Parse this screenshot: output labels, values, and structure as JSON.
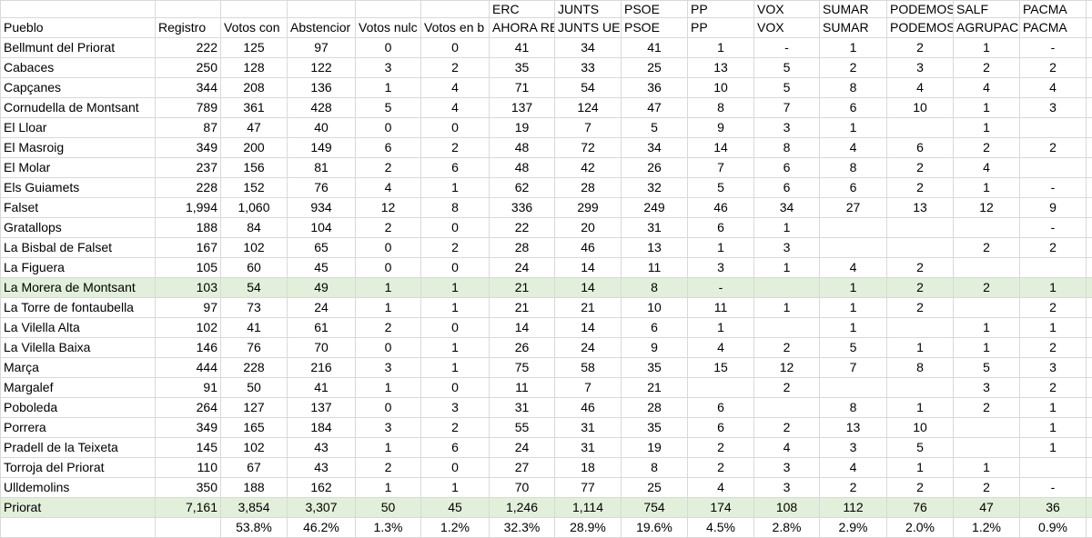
{
  "header": {
    "row1": [
      null,
      null,
      null,
      null,
      null,
      null,
      "ERC",
      "JUNTS",
      "PSOE",
      "PP",
      "VOX",
      "SUMAR",
      "PODEMOS",
      "SALF",
      "PACMA"
    ],
    "row2": [
      "Pueblo",
      "Registro",
      "Votos con",
      "Abstencior",
      "Votos nulc",
      "Votos en b",
      "AHORA RE",
      "JUNTS UE",
      "PSOE",
      "PP",
      "VOX",
      "SUMAR",
      "PODEMOS",
      "AGRUPACI",
      "PACMA"
    ]
  },
  "table": {
    "rows": [
      [
        "Bellmunt del Priorat",
        "222",
        "125",
        "97",
        "0",
        "0",
        "41",
        "34",
        "41",
        "1",
        "-",
        "1",
        "2",
        "1",
        "-"
      ],
      [
        "Cabaces",
        "250",
        "128",
        "122",
        "3",
        "2",
        "35",
        "33",
        "25",
        "13",
        "5",
        "2",
        "3",
        "2",
        "2"
      ],
      [
        "Capçanes",
        "344",
        "208",
        "136",
        "1",
        "4",
        "71",
        "54",
        "36",
        "10",
        "5",
        "8",
        "4",
        "4",
        "4"
      ],
      [
        "Cornudella de Montsant",
        "789",
        "361",
        "428",
        "5",
        "4",
        "137",
        "124",
        "47",
        "8",
        "7",
        "6",
        "10",
        "1",
        "3"
      ],
      [
        "El Lloar",
        "87",
        "47",
        "40",
        "0",
        "0",
        "19",
        "7",
        "5",
        "9",
        "3",
        "1",
        null,
        "1",
        null
      ],
      [
        "El Masroig",
        "349",
        "200",
        "149",
        "6",
        "2",
        "48",
        "72",
        "34",
        "14",
        "8",
        "4",
        "6",
        "2",
        "2"
      ],
      [
        "El Molar",
        "237",
        "156",
        "81",
        "2",
        "6",
        "48",
        "42",
        "26",
        "7",
        "6",
        "8",
        "2",
        "4",
        null
      ],
      [
        "Els Guiamets",
        "228",
        "152",
        "76",
        "4",
        "1",
        "62",
        "28",
        "32",
        "5",
        "6",
        "6",
        "2",
        "1",
        "-"
      ],
      [
        "Falset",
        "1,994",
        "1,060",
        "934",
        "12",
        "8",
        "336",
        "299",
        "249",
        "46",
        "34",
        "27",
        "13",
        "12",
        "9"
      ],
      [
        "Gratallops",
        "188",
        "84",
        "104",
        "2",
        "0",
        "22",
        "20",
        "31",
        "6",
        "1",
        null,
        null,
        null,
        "-"
      ],
      [
        "La Bisbal de Falset",
        "167",
        "102",
        "65",
        "0",
        "2",
        "28",
        "46",
        "13",
        "1",
        "3",
        null,
        null,
        "2",
        "2"
      ],
      [
        "La Figuera",
        "105",
        "60",
        "45",
        "0",
        "0",
        "24",
        "14",
        "11",
        "3",
        "1",
        "4",
        "2",
        null,
        null
      ],
      [
        "La Morera de Montsant",
        "103",
        "54",
        "49",
        "1",
        "1",
        "21",
        "14",
        "8",
        "-",
        null,
        "1",
        "2",
        "2",
        "1"
      ],
      [
        "La Torre de fontaubella",
        "97",
        "73",
        "24",
        "1",
        "1",
        "21",
        "21",
        "10",
        "11",
        "1",
        "1",
        "2",
        null,
        "2"
      ],
      [
        "La Vilella Alta",
        "102",
        "41",
        "61",
        "2",
        "0",
        "14",
        "14",
        "6",
        "1",
        null,
        "1",
        null,
        "1",
        "1"
      ],
      [
        "La Vilella Baixa",
        "146",
        "76",
        "70",
        "0",
        "1",
        "26",
        "24",
        "9",
        "4",
        "2",
        "5",
        "1",
        "1",
        "2"
      ],
      [
        "Marça",
        "444",
        "228",
        "216",
        "3",
        "1",
        "75",
        "58",
        "35",
        "15",
        "12",
        "7",
        "8",
        "5",
        "3"
      ],
      [
        "Margalef",
        "91",
        "50",
        "41",
        "1",
        "0",
        "11",
        "7",
        "21",
        null,
        "2",
        null,
        null,
        "3",
        "2"
      ],
      [
        "Poboleda",
        "264",
        "127",
        "137",
        "0",
        "3",
        "31",
        "46",
        "28",
        "6",
        null,
        "8",
        "1",
        "2",
        "1"
      ],
      [
        "Porrera",
        "349",
        "165",
        "184",
        "3",
        "2",
        "55",
        "31",
        "35",
        "6",
        "2",
        "13",
        "10",
        null,
        "1"
      ],
      [
        "Pradell de la Teixeta",
        "145",
        "102",
        "43",
        "1",
        "6",
        "24",
        "31",
        "19",
        "2",
        "4",
        "3",
        "5",
        null,
        "1"
      ],
      [
        "Torroja del Priorat",
        "110",
        "67",
        "43",
        "2",
        "0",
        "27",
        "18",
        "8",
        "2",
        "3",
        "4",
        "1",
        "1",
        null
      ],
      [
        "Ulldemolins",
        "350",
        "188",
        "162",
        "1",
        "1",
        "70",
        "77",
        "25",
        "4",
        "3",
        "2",
        "2",
        "2",
        "-"
      ],
      [
        "Priorat",
        "7,161",
        "3,854",
        "3,307",
        "50",
        "45",
        "1,246",
        "1,114",
        "754",
        "174",
        "108",
        "112",
        "76",
        "47",
        "36"
      ],
      [
        null,
        null,
        "53.8%",
        "46.2%",
        "1.3%",
        "1.2%",
        "32.3%",
        "28.9%",
        "19.6%",
        "4.5%",
        "2.8%",
        "2.9%",
        "2.0%",
        "1.2%",
        "0.9%"
      ]
    ]
  }
}
